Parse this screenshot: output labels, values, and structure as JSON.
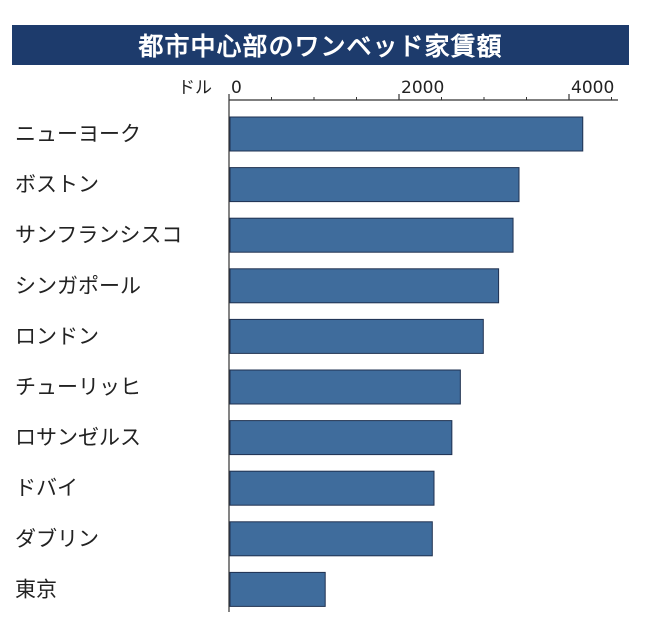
{
  "chart_data": {
    "type": "bar",
    "orientation": "horizontal",
    "title": "都市中心部のワンベッド家賃額",
    "unit_label": "ドル",
    "xlim": [
      0,
      4500
    ],
    "ticks": [
      0,
      2000,
      4000
    ],
    "tick_labels": [
      "0",
      "2000",
      "4000"
    ],
    "grid": false,
    "categories": [
      "ニューヨーク",
      "ボストン",
      "サンフランシスコ",
      "シンガポール",
      "ロンドン",
      "チューリッヒ",
      "ロサンゼルス",
      "ドバイ",
      "ダブリン",
      "東京"
    ],
    "values": [
      4150,
      3400,
      3330,
      3160,
      2980,
      2710,
      2610,
      2400,
      2380,
      1120
    ],
    "colors": {
      "bar": "#3f6c9c",
      "bar_border": "#1f3150",
      "title_bg": "#1d3b6c",
      "title_text": "#ffffff",
      "axis": "#333333",
      "text": "#222222"
    }
  }
}
